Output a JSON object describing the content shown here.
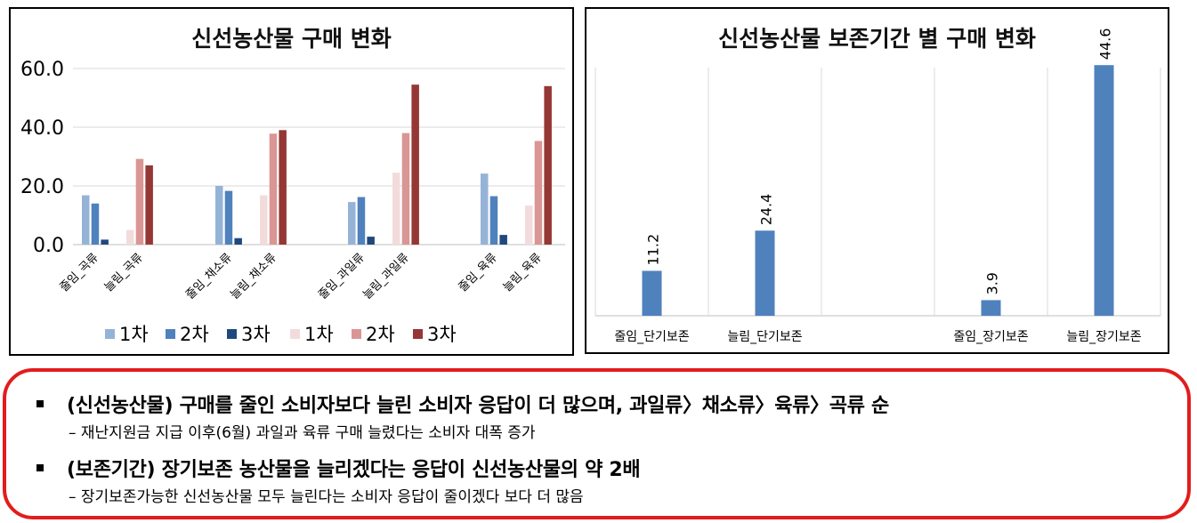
{
  "chart_data": [
    {
      "type": "bar",
      "title": "신선농산물 구매 변화",
      "y_ticks": [
        "60.0",
        "40.0",
        "20.0",
        "0.0"
      ],
      "ylim": [
        0,
        60
      ],
      "grid": true,
      "legend_position": "bottom",
      "legend": [
        {
          "label": "1차",
          "color": "#95b3d7"
        },
        {
          "label": "2차",
          "color": "#4f81bd"
        },
        {
          "label": "3차",
          "color": "#1f497d"
        },
        {
          "label": "1차",
          "color": "#f2dcdb"
        },
        {
          "label": "2차",
          "color": "#d99694"
        },
        {
          "label": "3차",
          "color": "#953735"
        }
      ],
      "categories": [
        "줄임_곡류",
        "늘림_곡류",
        "줄임_채소류",
        "늘림_채소류",
        "줄임_과일류",
        "늘림_과일류",
        "줄임_육류",
        "늘림_육류"
      ],
      "series": [
        {
          "name": "1차",
          "values": [
            16.8,
            5.0,
            20.0,
            16.8,
            14.5,
            24.5,
            24.2,
            13.3
          ],
          "colors": [
            "#95b3d7",
            "#f2dcdb"
          ]
        },
        {
          "name": "2차",
          "values": [
            14.0,
            29.2,
            18.3,
            37.8,
            16.2,
            38.0,
            16.5,
            35.3
          ],
          "colors": [
            "#4f81bd",
            "#d99694"
          ]
        },
        {
          "name": "3차",
          "values": [
            1.7,
            27.0,
            2.2,
            39.0,
            2.7,
            54.5,
            3.3,
            54.0
          ],
          "colors": [
            "#1f497d",
            "#953735"
          ]
        }
      ]
    },
    {
      "type": "bar",
      "title": "신선농산물 보존기간 별 구매 변화",
      "ylim": [
        0,
        50
      ],
      "categories": [
        "줄임_단기보존",
        "늘림_단기보존",
        "",
        "줄임_장기보존",
        "늘림_장기보존"
      ],
      "values": [
        11.2,
        24.4,
        null,
        3.9,
        44.6
      ],
      "data_labels": [
        "11.2",
        "24.4",
        "",
        "3.9",
        "44.6"
      ],
      "bar_heights_display": [
        9.5,
        18.0,
        null,
        3.3,
        53.0
      ],
      "color": "#4f81bd"
    }
  ],
  "summary": {
    "point1": "(신선농산물) 구매를 줄인 소비자보다 늘린 소비자 응답이 더 많으며, 과일류〉채소류〉육류〉곡류 순",
    "point1_sub": "–  재난지원금 지급 이후(6월) 과일과 육류 구매 늘렸다는 소비자 대폭 증가",
    "point2": "(보존기간) 장기보존 농산물을 늘리겠다는 응답이 신선농산물의 약 2배",
    "point2_sub": "– 장기보존가능한 신선농산물 모두 늘린다는 소비자 응답이 줄이겠다 보다 더 많음"
  }
}
